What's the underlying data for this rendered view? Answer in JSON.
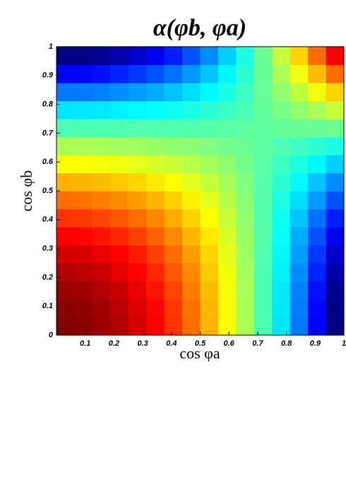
{
  "chart_data": {
    "type": "heatmap",
    "title": "α(φb, φa)",
    "xlabel": "cos φa",
    "ylabel": "cos φb",
    "colormap": "jet",
    "xlim": [
      0,
      1
    ],
    "ylim": [
      0,
      1
    ],
    "xticks": [
      0.1,
      0.2,
      0.3,
      0.4,
      0.5,
      0.6,
      0.7,
      0.8,
      0.9,
      1
    ],
    "yticks": [
      0,
      0.1,
      0.2,
      0.3,
      0.4,
      0.5,
      0.6,
      0.7,
      0.8,
      0.9,
      1
    ],
    "x": [
      0.03125,
      0.09375,
      0.15625,
      0.21875,
      0.28125,
      0.34375,
      0.40625,
      0.46875,
      0.53125,
      0.59375,
      0.65625,
      0.71875,
      0.78125,
      0.84375,
      0.90625,
      0.96875
    ],
    "y": [
      0.03125,
      0.09375,
      0.15625,
      0.21875,
      0.28125,
      0.34375,
      0.40625,
      0.46875,
      0.53125,
      0.59375,
      0.65625,
      0.71875,
      0.78125,
      0.84375,
      0.90625,
      0.96875
    ],
    "z": [
      [
        0.249,
        0.245,
        0.237,
        0.226,
        0.21,
        0.191,
        0.167,
        0.14,
        0.109,
        0.074,
        0.035,
        -0.008,
        -0.055,
        -0.106,
        -0.16,
        -0.219
      ],
      [
        0.245,
        0.241,
        0.234,
        0.222,
        0.207,
        0.188,
        0.165,
        0.138,
        0.107,
        0.072,
        0.034,
        -0.008,
        -0.054,
        -0.104,
        -0.158,
        -0.215
      ],
      [
        0.237,
        0.234,
        0.226,
        0.215,
        0.2,
        0.182,
        0.159,
        0.133,
        0.104,
        0.07,
        0.033,
        -0.008,
        -0.053,
        -0.101,
        -0.153,
        -0.209
      ],
      [
        0.226,
        0.222,
        0.215,
        0.204,
        0.19,
        0.173,
        0.151,
        0.127,
        0.098,
        0.067,
        0.031,
        -0.008,
        -0.05,
        -0.096,
        -0.145,
        -0.198
      ],
      [
        0.21,
        0.207,
        0.2,
        0.19,
        0.177,
        0.161,
        0.141,
        0.118,
        0.092,
        0.062,
        0.029,
        -0.007,
        -0.046,
        -0.089,
        -0.135,
        -0.185
      ],
      [
        0.191,
        0.188,
        0.182,
        0.173,
        0.161,
        0.146,
        0.128,
        0.107,
        0.083,
        0.056,
        0.026,
        -0.006,
        -0.042,
        -0.081,
        -0.123,
        -0.167
      ],
      [
        0.167,
        0.165,
        0.159,
        0.151,
        0.141,
        0.128,
        0.112,
        0.094,
        0.073,
        0.049,
        0.023,
        -0.006,
        -0.037,
        -0.071,
        -0.108,
        -0.147
      ],
      [
        0.14,
        0.138,
        0.133,
        0.127,
        0.118,
        0.107,
        0.094,
        0.079,
        0.061,
        0.041,
        0.019,
        -0.005,
        -0.031,
        -0.059,
        -0.09,
        -0.123
      ],
      [
        0.109,
        0.107,
        0.104,
        0.098,
        0.092,
        0.083,
        0.073,
        0.061,
        0.047,
        0.032,
        0.015,
        -0.004,
        -0.024,
        -0.046,
        -0.07,
        -0.096
      ],
      [
        0.074,
        0.072,
        0.07,
        0.067,
        0.062,
        0.056,
        0.049,
        0.041,
        0.032,
        0.022,
        0.01,
        -0.002,
        -0.016,
        -0.031,
        -0.047,
        -0.065
      ],
      [
        0.035,
        0.034,
        0.033,
        0.031,
        0.029,
        0.026,
        0.023,
        0.019,
        0.015,
        0.01,
        0.005,
        -0.001,
        -0.008,
        -0.015,
        -0.022,
        -0.03
      ],
      [
        -0.008,
        -0.008,
        -0.008,
        -0.008,
        -0.007,
        -0.006,
        -0.006,
        -0.005,
        -0.004,
        -0.002,
        -0.001,
        0,
        0.002,
        0.004,
        0.005,
        0.007
      ],
      [
        -0.055,
        -0.054,
        -0.053,
        -0.05,
        -0.046,
        -0.042,
        -0.037,
        -0.031,
        -0.024,
        -0.016,
        -0.008,
        0.002,
        0.012,
        0.023,
        0.035,
        0.048
      ],
      [
        -0.106,
        -0.104,
        -0.101,
        -0.096,
        -0.089,
        -0.081,
        -0.071,
        -0.059,
        -0.046,
        -0.031,
        -0.015,
        0.004,
        0.023,
        0.045,
        0.068,
        0.093
      ],
      [
        -0.16,
        -0.158,
        -0.153,
        -0.145,
        -0.135,
        -0.123,
        -0.108,
        -0.09,
        -0.07,
        -0.047,
        -0.022,
        0.005,
        0.035,
        0.068,
        0.103,
        0.141
      ],
      [
        -0.219,
        -0.215,
        -0.209,
        -0.198,
        -0.185,
        -0.167,
        -0.147,
        -0.123,
        -0.096,
        -0.065,
        -0.03,
        0.007,
        0.048,
        0.093,
        0.141,
        0.192
      ]
    ]
  }
}
